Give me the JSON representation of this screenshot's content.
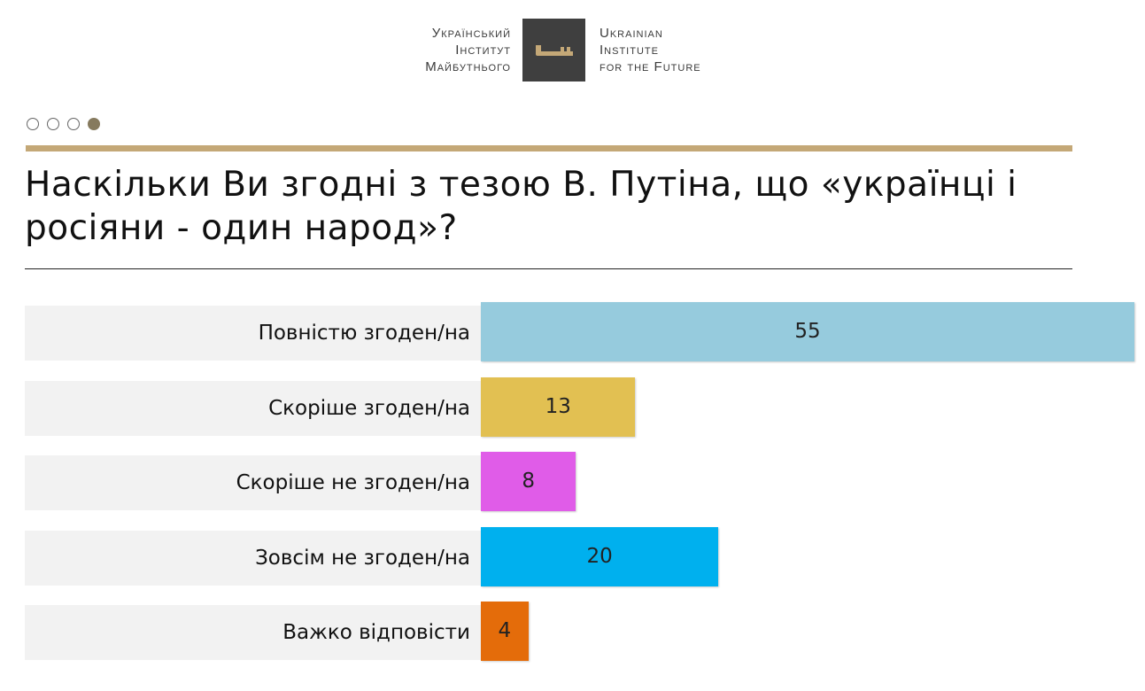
{
  "logo": {
    "ua_lines": [
      "Український",
      "Інститут",
      "Майбутнього"
    ],
    "en_lines": [
      "Ukrainian",
      "Institute",
      "for the Future"
    ],
    "icon": "key-icon"
  },
  "pagination": {
    "total": 4,
    "active": 4
  },
  "chart_data": {
    "type": "bar",
    "orientation": "horizontal",
    "title": "Наскільки Ви згодні з тезою В. Путіна, що «українці і росіяни - один народ»?",
    "categories": [
      "Повністю згоден/на",
      "Скоріше згоден/на",
      "Скоріше не згоден/на",
      "Зовсім не згоден/на",
      "Важко відповісти"
    ],
    "values": [
      55,
      13,
      8,
      20,
      4
    ],
    "colors": [
      "#96cbdd",
      "#e2c052",
      "#e05ce8",
      "#00b0ee",
      "#e46c0a"
    ],
    "xlim": [
      0,
      55
    ]
  }
}
